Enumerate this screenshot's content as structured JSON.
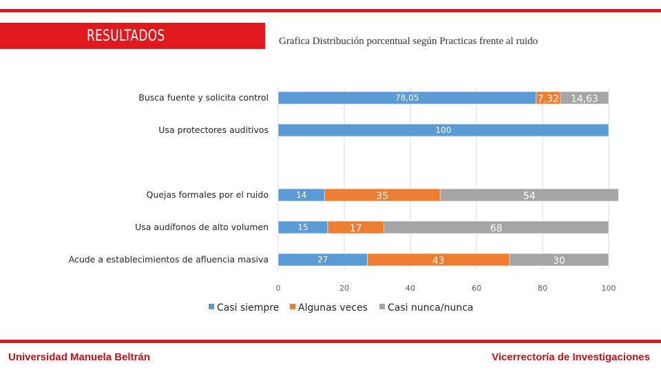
{
  "header": {
    "section_title": "RESULTADOS"
  },
  "chart_data": {
    "type": "bar",
    "orientation": "horizontal",
    "stacked": true,
    "title": "Grafica  Distribución porcentual según Practicas frente al ruido",
    "categories": [
      "Busca fuente y solicita control",
      "Usa protectores auditivos",
      "Quejas formales por el ruido",
      "Usa audífonos de alto volumen",
      "Acude a establecimientos de afluencia masiva"
    ],
    "series": [
      {
        "name": "Casi siempre",
        "color": "#5b9bd5",
        "values": [
          78.05,
          100,
          14,
          15,
          27
        ],
        "labels": [
          "78,05",
          "100",
          "14",
          "15",
          "27"
        ]
      },
      {
        "name": "Algunas veces",
        "color": "#ed7d31",
        "values": [
          7.32,
          0,
          35,
          17,
          43
        ],
        "labels": [
          "7,32",
          "",
          "35",
          "17",
          "43"
        ]
      },
      {
        "name": "Casi nunca/nunca",
        "color": "#a5a5a5",
        "values": [
          14.63,
          0,
          54,
          68,
          30
        ],
        "labels": [
          "14,63",
          "",
          "54",
          "68",
          "30"
        ]
      }
    ],
    "xlim": [
      0,
      100
    ],
    "xticks": [
      "0",
      "20",
      "40",
      "60",
      "80",
      "100"
    ],
    "grid": true,
    "legend_position": "bottom"
  },
  "footer": {
    "left": "Universidad Manuela Beltrán",
    "right": "Vicerrectoría de Investigaciones"
  }
}
